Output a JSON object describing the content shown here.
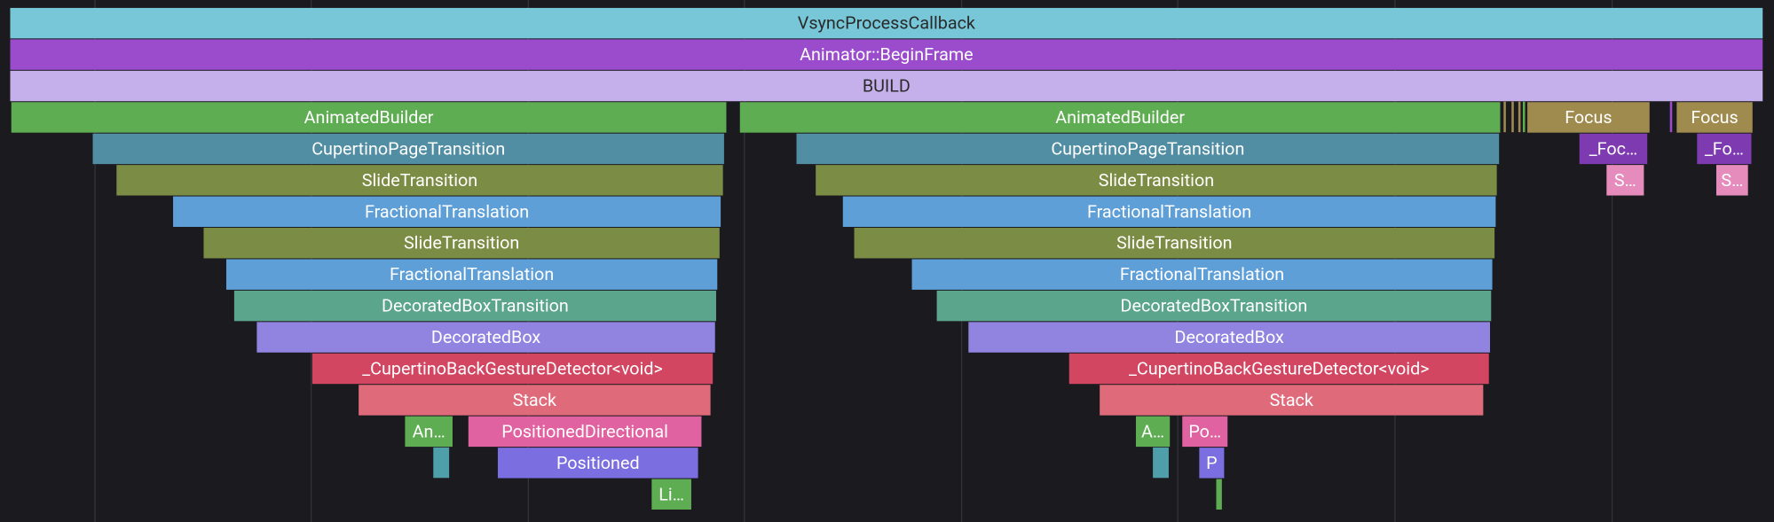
{
  "frames": [
    {
      "label": "VsyncProcessCallback"
    },
    {
      "label": "Animator::BeginFrame"
    },
    {
      "label": "BUILD"
    },
    {
      "label": "AnimatedBuilder"
    },
    {
      "label": "AnimatedBuilder"
    },
    {
      "label": "Focus"
    },
    {
      "label": "Focus"
    },
    {
      "label": "CupertinoPageTransition"
    },
    {
      "label": "CupertinoPageTransition"
    },
    {
      "label": "_Foc…"
    },
    {
      "label": "_Fo…"
    },
    {
      "label": "SlideTransition"
    },
    {
      "label": "SlideTransition"
    },
    {
      "label": "S…"
    },
    {
      "label": "S…"
    },
    {
      "label": "FractionalTranslation"
    },
    {
      "label": "FractionalTranslation"
    },
    {
      "label": "SlideTransition"
    },
    {
      "label": "SlideTransition"
    },
    {
      "label": "FractionalTranslation"
    },
    {
      "label": "FractionalTranslation"
    },
    {
      "label": "DecoratedBoxTransition"
    },
    {
      "label": "DecoratedBoxTransition"
    },
    {
      "label": "DecoratedBox"
    },
    {
      "label": "DecoratedBox"
    },
    {
      "label": "_CupertinoBackGestureDetector<void>"
    },
    {
      "label": "_CupertinoBackGestureDetector<void>"
    },
    {
      "label": "Stack"
    },
    {
      "label": "Stack"
    },
    {
      "label": "An…"
    },
    {
      "label": "PositionedDirectional"
    },
    {
      "label": "A…"
    },
    {
      "label": "Po…"
    },
    {
      "label": "Positioned"
    },
    {
      "label": "P"
    },
    {
      "label": "Li…"
    }
  ]
}
